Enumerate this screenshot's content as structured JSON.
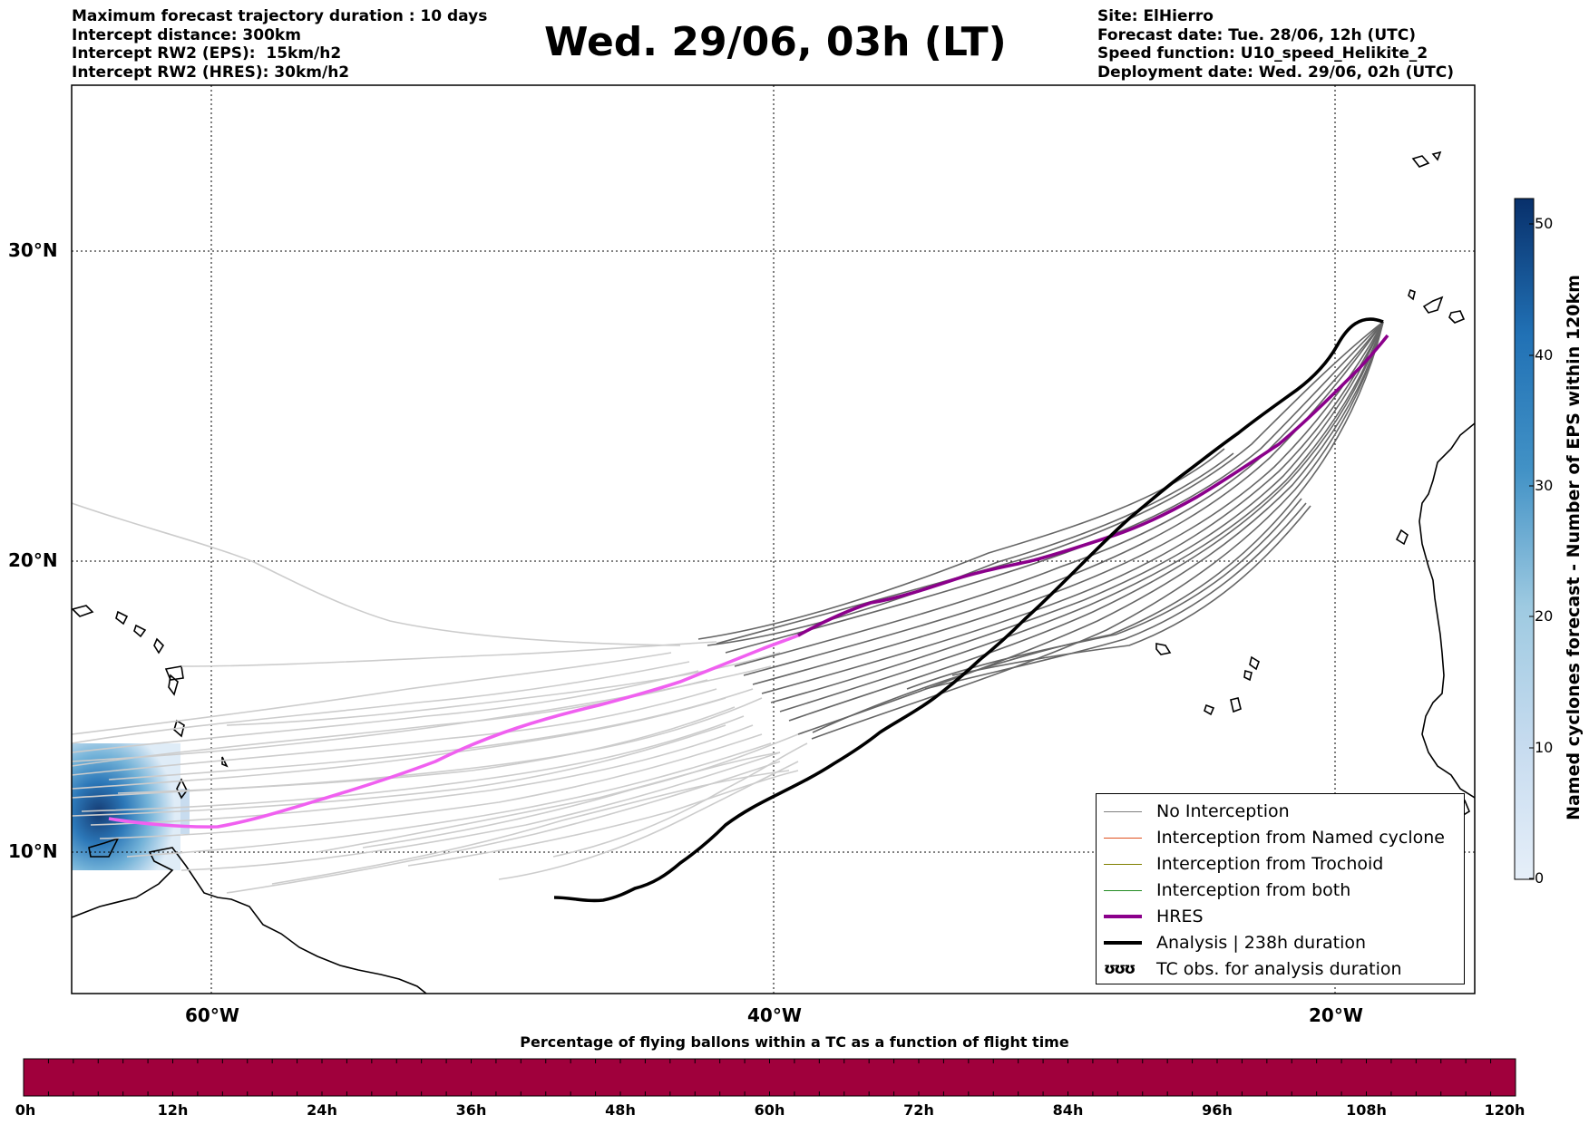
{
  "header_left": [
    "Maximum forecast trajectory duration : 10 days",
    "Intercept distance: 300km",
    "Intercept RW2 (EPS):  15km/h2",
    "Intercept RW2 (HRES): 30km/h2"
  ],
  "title": "Wed. 29/06, 03h (LT)",
  "header_right": [
    "Site: ElHierro",
    "Forecast date: Tue. 28/06, 12h (UTC)",
    "Speed function: U10_speed_Helikite_2",
    "Deployment date: Wed. 29/06, 02h (UTC)"
  ],
  "map": {
    "lat_labels": [
      "30°N",
      "20°N",
      "10°N"
    ],
    "lon_labels": [
      "60°W",
      "40°W",
      "20°W"
    ],
    "grid": "dotted",
    "colors": {
      "eps_trajectory_late": "#666666",
      "eps_trajectory_early": "#cccccc",
      "hres": "#8b008b",
      "hres_early": "#f060f0",
      "analysis": "#000000",
      "coastline": "#000000"
    }
  },
  "legend": {
    "position": "lower-right",
    "items": [
      {
        "label": "No Interception",
        "color": "#808080",
        "style": "line"
      },
      {
        "label": "Interception from Named cyclone",
        "color": "#e0501e",
        "style": "line"
      },
      {
        "label": "Interception from Trochoid",
        "color": "#808000",
        "style": "line"
      },
      {
        "label": "Interception from both",
        "color": "#228b22",
        "style": "line"
      },
      {
        "label": "HRES",
        "color": "#8b008b",
        "style": "thick-line"
      },
      {
        "label": "Analysis | 238h duration",
        "color": "#000000",
        "style": "thick-line"
      },
      {
        "label": "TC obs. for analysis duration",
        "icon": "ʊʊʊ",
        "style": "icon"
      }
    ]
  },
  "colorbar": {
    "title": "Named cyclones forecast - Number of EPS within 120km",
    "ticks": [
      "50",
      "40",
      "30",
      "20",
      "10",
      "0"
    ],
    "range": [
      0,
      52
    ],
    "color_low": "#e6eff9",
    "color_high": "#08306b"
  },
  "time_bar": {
    "title": "Percentage of flying ballons within a TC as a function of flight time",
    "color": "#a0003c",
    "labels": [
      "0h",
      "12h",
      "24h",
      "36h",
      "48h",
      "60h",
      "72h",
      "84h",
      "96h",
      "108h",
      "120h"
    ]
  }
}
